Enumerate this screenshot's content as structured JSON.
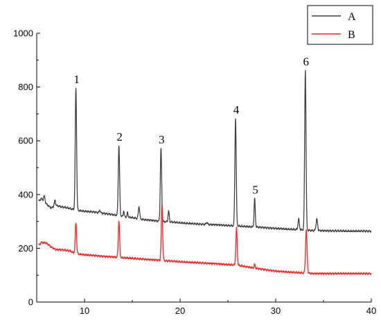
{
  "chart_data": {
    "type": "line",
    "title": "",
    "xlabel": "",
    "ylabel": "",
    "xlim": [
      5,
      40
    ],
    "ylim": [
      0,
      1000
    ],
    "xticks": [
      10,
      20,
      30,
      40
    ],
    "yticks": [
      0,
      200,
      400,
      600,
      800,
      1000
    ],
    "legend_position": "top-right",
    "grid": false,
    "series": [
      {
        "name": "A",
        "color": "#404040",
        "baseline": [
          [
            5,
            370
          ],
          [
            5.5,
            385
          ],
          [
            6,
            365
          ],
          [
            6.5,
            350
          ],
          [
            7,
            360
          ],
          [
            7.5,
            355
          ],
          [
            8,
            352
          ],
          [
            8.5,
            348
          ],
          [
            9,
            342
          ],
          [
            10,
            338
          ],
          [
            11,
            335
          ],
          [
            12,
            330
          ],
          [
            13,
            325
          ],
          [
            14,
            318
          ],
          [
            15,
            314
          ],
          [
            16,
            308
          ],
          [
            17,
            304
          ],
          [
            18,
            300
          ],
          [
            19,
            298
          ],
          [
            20,
            295
          ],
          [
            22,
            290
          ],
          [
            24,
            287
          ],
          [
            26,
            283
          ],
          [
            28,
            279
          ],
          [
            30,
            274
          ],
          [
            32,
            270
          ],
          [
            34,
            266
          ],
          [
            36,
            265
          ],
          [
            38,
            264
          ],
          [
            40,
            264
          ]
        ],
        "peaks": [
          [
            5.8,
            395,
            0.07
          ],
          [
            6.9,
            378,
            0.06
          ],
          [
            9.1,
            797,
            0.07
          ],
          [
            11.6,
            342,
            0.06
          ],
          [
            13.6,
            582,
            0.07
          ],
          [
            14.1,
            340,
            0.05
          ],
          [
            14.5,
            333,
            0.05
          ],
          [
            15.7,
            355,
            0.07
          ],
          [
            18.0,
            572,
            0.07
          ],
          [
            18.8,
            340,
            0.06
          ],
          [
            22.8,
            296,
            0.08
          ],
          [
            25.8,
            683,
            0.07
          ],
          [
            27.8,
            385,
            0.06
          ],
          [
            32.4,
            309,
            0.07
          ],
          [
            33.1,
            862,
            0.07
          ],
          [
            34.3,
            309,
            0.08
          ]
        ]
      },
      {
        "name": "B",
        "color": "#ff2020",
        "baseline": [
          [
            5,
            205
          ],
          [
            5.5,
            222
          ],
          [
            6,
            220
          ],
          [
            6.5,
            205
          ],
          [
            7,
            195
          ],
          [
            7.5,
            195
          ],
          [
            8,
            193
          ],
          [
            8.5,
            190
          ],
          [
            9,
            180
          ],
          [
            10,
            176
          ],
          [
            12,
            170
          ],
          [
            14,
            165
          ],
          [
            16,
            160
          ],
          [
            18,
            155
          ],
          [
            20,
            150
          ],
          [
            22,
            146
          ],
          [
            24,
            142
          ],
          [
            26,
            137
          ],
          [
            28,
            125
          ],
          [
            30,
            115
          ],
          [
            32,
            110
          ],
          [
            34,
            106
          ],
          [
            36,
            106
          ],
          [
            38,
            106
          ],
          [
            40,
            106
          ]
        ],
        "peaks": [
          [
            9.1,
            295,
            0.07
          ],
          [
            13.6,
            302,
            0.07
          ],
          [
            18.1,
            362,
            0.07
          ],
          [
            25.9,
            275,
            0.07
          ],
          [
            27.8,
            140,
            0.06
          ],
          [
            33.2,
            268,
            0.08
          ]
        ]
      }
    ],
    "annotations": [
      {
        "text": "1",
        "x": 9.1,
        "y": 797
      },
      {
        "text": "2",
        "x": 13.6,
        "y": 582
      },
      {
        "text": "3",
        "x": 18.0,
        "y": 572
      },
      {
        "text": "4",
        "x": 25.8,
        "y": 683
      },
      {
        "text": "5",
        "x": 27.8,
        "y": 385
      },
      {
        "text": "6",
        "x": 33.1,
        "y": 862
      }
    ]
  }
}
